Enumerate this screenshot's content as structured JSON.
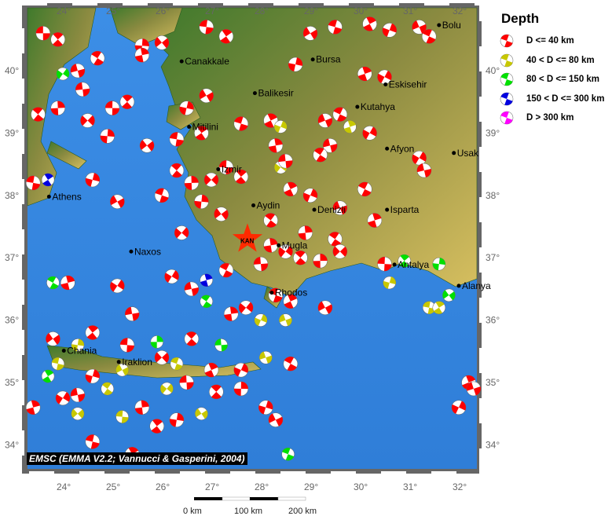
{
  "legend": {
    "title": "Depth",
    "items": [
      {
        "label": "D <= 40 km",
        "color": "#ff0000"
      },
      {
        "label": "40 < D <= 80 km",
        "color": "#c8c800"
      },
      {
        "label": "80 < D <= 150 km",
        "color": "#00e000"
      },
      {
        "label": "150 < D <= 300 km",
        "color": "#0000e0"
      },
      {
        "label": "D > 300 km",
        "color": "#ff00ff"
      }
    ]
  },
  "axes": {
    "lon_ticks": [
      "24°",
      "25°",
      "26°",
      "27°",
      "28°",
      "29°",
      "30°",
      "31°",
      "32°"
    ],
    "lat_ticks": [
      "40°",
      "39°",
      "38°",
      "37°",
      "36°",
      "35°",
      "34°"
    ]
  },
  "cities": [
    {
      "name": "Canakkale",
      "lon": 26.4,
      "lat": 40.15
    },
    {
      "name": "Bursa",
      "lon": 29.05,
      "lat": 40.18
    },
    {
      "name": "Balikesir",
      "lon": 27.88,
      "lat": 39.64
    },
    {
      "name": "Eskisehir",
      "lon": 30.52,
      "lat": 39.78
    },
    {
      "name": "Kutahya",
      "lon": 29.95,
      "lat": 39.42
    },
    {
      "name": "Bolu",
      "lon": 31.6,
      "lat": 40.73
    },
    {
      "name": "Afyon",
      "lon": 30.55,
      "lat": 38.75
    },
    {
      "name": "Usak",
      "lon": 31.9,
      "lat": 38.68
    },
    {
      "name": "Mitilini",
      "lon": 26.55,
      "lat": 39.1
    },
    {
      "name": "Izmir",
      "lon": 27.14,
      "lat": 38.42
    },
    {
      "name": "Aydin",
      "lon": 27.85,
      "lat": 37.84
    },
    {
      "name": "Denizli",
      "lon": 29.08,
      "lat": 37.77
    },
    {
      "name": "Isparta",
      "lon": 30.55,
      "lat": 37.77
    },
    {
      "name": "Mugla",
      "lon": 28.36,
      "lat": 37.2
    },
    {
      "name": "Antalya",
      "lon": 30.7,
      "lat": 36.89
    },
    {
      "name": "Alanya",
      "lon": 32.0,
      "lat": 36.55
    },
    {
      "name": "Rhodos",
      "lon": 28.22,
      "lat": 36.44
    },
    {
      "name": "Athens",
      "lon": 23.72,
      "lat": 37.98
    },
    {
      "name": "Naxos",
      "lon": 25.38,
      "lat": 37.1
    },
    {
      "name": "Chania",
      "lon": 24.02,
      "lat": 35.51
    },
    {
      "name": "Iraklion",
      "lon": 25.13,
      "lat": 35.33
    }
  ],
  "station": {
    "label": "KAN",
    "lon": 27.73,
    "lat": 37.3
  },
  "events": [
    [
      23.6,
      40.6,
      1
    ],
    [
      23.9,
      40.5,
      1
    ],
    [
      25.6,
      40.4,
      1
    ],
    [
      26.0,
      40.45,
      1
    ],
    [
      26.9,
      40.7,
      1
    ],
    [
      27.3,
      40.55,
      1
    ],
    [
      28.7,
      40.1,
      1
    ],
    [
      29.0,
      40.6,
      1
    ],
    [
      29.5,
      40.7,
      1
    ],
    [
      30.2,
      40.75,
      1
    ],
    [
      30.6,
      40.65,
      1
    ],
    [
      31.2,
      40.7,
      1
    ],
    [
      31.4,
      40.55,
      1
    ],
    [
      30.1,
      39.95,
      1
    ],
    [
      30.5,
      39.9,
      1
    ],
    [
      24.3,
      40.0,
      1
    ],
    [
      24.7,
      40.2,
      1
    ],
    [
      25.6,
      40.25,
      1
    ],
    [
      24.0,
      39.95,
      3
    ],
    [
      24.4,
      39.7,
      1
    ],
    [
      23.5,
      39.3,
      1
    ],
    [
      23.9,
      39.4,
      1
    ],
    [
      24.5,
      39.2,
      1
    ],
    [
      25.0,
      39.4,
      1
    ],
    [
      25.3,
      39.5,
      1
    ],
    [
      24.9,
      38.95,
      1
    ],
    [
      25.7,
      38.8,
      1
    ],
    [
      26.3,
      38.9,
      1
    ],
    [
      26.8,
      39.0,
      1
    ],
    [
      26.5,
      39.4,
      1
    ],
    [
      26.9,
      39.6,
      1
    ],
    [
      27.6,
      39.15,
      1
    ],
    [
      28.2,
      39.2,
      1
    ],
    [
      28.4,
      39.1,
      2
    ],
    [
      29.3,
      39.2,
      1
    ],
    [
      29.6,
      39.3,
      1
    ],
    [
      29.8,
      39.1,
      2
    ],
    [
      30.2,
      39.0,
      1
    ],
    [
      29.4,
      38.8,
      1
    ],
    [
      29.2,
      38.65,
      1
    ],
    [
      28.3,
      38.8,
      1
    ],
    [
      28.4,
      38.45,
      2
    ],
    [
      28.5,
      38.55,
      1
    ],
    [
      26.3,
      38.4,
      1
    ],
    [
      26.6,
      38.2,
      1
    ],
    [
      27.0,
      38.25,
      1
    ],
    [
      27.3,
      38.45,
      1
    ],
    [
      27.6,
      38.3,
      1
    ],
    [
      26.8,
      37.9,
      1
    ],
    [
      27.2,
      37.7,
      1
    ],
    [
      23.4,
      38.2,
      1
    ],
    [
      23.7,
      38.25,
      4
    ],
    [
      24.6,
      38.25,
      1
    ],
    [
      25.1,
      37.9,
      1
    ],
    [
      26.0,
      38.0,
      1
    ],
    [
      28.6,
      38.1,
      1
    ],
    [
      29.0,
      38.0,
      1
    ],
    [
      29.6,
      37.8,
      1
    ],
    [
      30.1,
      38.1,
      1
    ],
    [
      30.3,
      37.6,
      1
    ],
    [
      31.2,
      38.6,
      1
    ],
    [
      31.3,
      38.4,
      1
    ],
    [
      29.5,
      37.3,
      1
    ],
    [
      28.2,
      37.2,
      1
    ],
    [
      28.5,
      37.1,
      1
    ],
    [
      28.0,
      36.9,
      1
    ],
    [
      28.8,
      37.0,
      1
    ],
    [
      29.2,
      36.95,
      1
    ],
    [
      29.6,
      37.1,
      1
    ],
    [
      30.5,
      36.9,
      1
    ],
    [
      30.9,
      36.95,
      3
    ],
    [
      31.6,
      36.9,
      3
    ],
    [
      31.8,
      36.4,
      3
    ],
    [
      31.4,
      36.2,
      2
    ],
    [
      31.6,
      36.2,
      2
    ],
    [
      30.6,
      36.6,
      2
    ],
    [
      29.3,
      36.2,
      1
    ],
    [
      28.3,
      36.4,
      1
    ],
    [
      28.6,
      36.3,
      1
    ],
    [
      28.0,
      36.0,
      2
    ],
    [
      28.5,
      36.0,
      2
    ],
    [
      27.3,
      36.8,
      1
    ],
    [
      26.9,
      36.64,
      4
    ],
    [
      26.2,
      36.7,
      1
    ],
    [
      26.6,
      36.5,
      1
    ],
    [
      26.9,
      36.3,
      3
    ],
    [
      27.4,
      36.1,
      1
    ],
    [
      27.7,
      36.2,
      1
    ],
    [
      27.2,
      35.6,
      3
    ],
    [
      26.6,
      35.7,
      1
    ],
    [
      25.9,
      35.65,
      3
    ],
    [
      26.0,
      35.4,
      1
    ],
    [
      25.3,
      35.6,
      1
    ],
    [
      24.6,
      35.8,
      1
    ],
    [
      24.3,
      35.6,
      2
    ],
    [
      23.8,
      35.7,
      1
    ],
    [
      23.9,
      35.3,
      2
    ],
    [
      23.7,
      35.1,
      3
    ],
    [
      24.6,
      35.1,
      1
    ],
    [
      25.2,
      35.2,
      2
    ],
    [
      26.3,
      35.3,
      2
    ],
    [
      27.0,
      35.2,
      1
    ],
    [
      27.6,
      35.2,
      1
    ],
    [
      28.1,
      35.4,
      2
    ],
    [
      28.6,
      35.3,
      1
    ],
    [
      23.4,
      34.6,
      1
    ],
    [
      24.0,
      34.75,
      1
    ],
    [
      24.3,
      34.8,
      1
    ],
    [
      24.9,
      34.9,
      2
    ],
    [
      25.6,
      34.6,
      1
    ],
    [
      26.1,
      34.9,
      2
    ],
    [
      26.5,
      35.0,
      1
    ],
    [
      27.1,
      34.85,
      1
    ],
    [
      27.6,
      34.9,
      1
    ],
    [
      24.3,
      34.5,
      2
    ],
    [
      25.2,
      34.45,
      2
    ],
    [
      25.9,
      34.3,
      1
    ],
    [
      26.3,
      34.4,
      1
    ],
    [
      26.8,
      34.5,
      2
    ],
    [
      24.6,
      34.05,
      1
    ],
    [
      25.4,
      33.85,
      1
    ],
    [
      28.1,
      34.6,
      1
    ],
    [
      28.3,
      34.4,
      1
    ],
    [
      28.55,
      33.85,
      3
    ],
    [
      32.2,
      35.0,
      1
    ],
    [
      32.0,
      34.6,
      1
    ],
    [
      32.3,
      34.9,
      1
    ],
    [
      23.8,
      36.6,
      3
    ],
    [
      24.1,
      36.6,
      1
    ],
    [
      25.1,
      36.55,
      1
    ],
    [
      25.4,
      36.1,
      1
    ],
    [
      28.2,
      37.6,
      1
    ],
    [
      28.9,
      37.4,
      1
    ],
    [
      26.4,
      37.4,
      1
    ]
  ]
}
